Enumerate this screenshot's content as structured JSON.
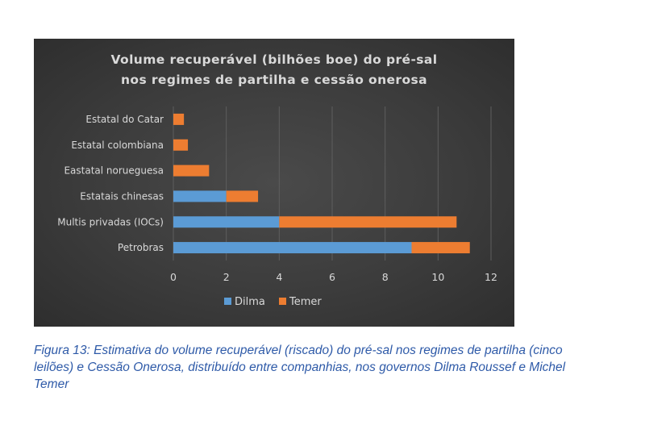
{
  "chart_data": {
    "type": "bar",
    "orientation": "horizontal",
    "stacked": true,
    "title": [
      "Volume recuperável (bilhões boe) do pré-sal",
      "nos regimes de partilha e cessão onerosa"
    ],
    "categories": [
      "Petrobras",
      "Multis privadas (IOCs)",
      "Estatais chinesas",
      "Eastatal norueguesa",
      "Estatal colombiana",
      "Estatal do Catar"
    ],
    "series": [
      {
        "name": "Dilma",
        "color": "#5b9bd5",
        "values": [
          9.0,
          4.0,
          2.0,
          0,
          0,
          0
        ]
      },
      {
        "name": "Temer",
        "color": "#ed7d31",
        "values": [
          2.2,
          6.7,
          1.2,
          1.35,
          0.55,
          0.4
        ]
      }
    ],
    "xlim": [
      0,
      12
    ],
    "xticks": [
      "0",
      "2",
      "4",
      "6",
      "8",
      "10",
      "12"
    ],
    "grid": "vertical",
    "legend_position": "bottom"
  },
  "caption": "Figura 13: Estimativa do volume recuperável (riscado) do pré-sal nos regimes de partilha (cinco leilões) e Cessão Onerosa, distribuído entre companhias, nos governos Dilma Roussef e Michel Temer"
}
